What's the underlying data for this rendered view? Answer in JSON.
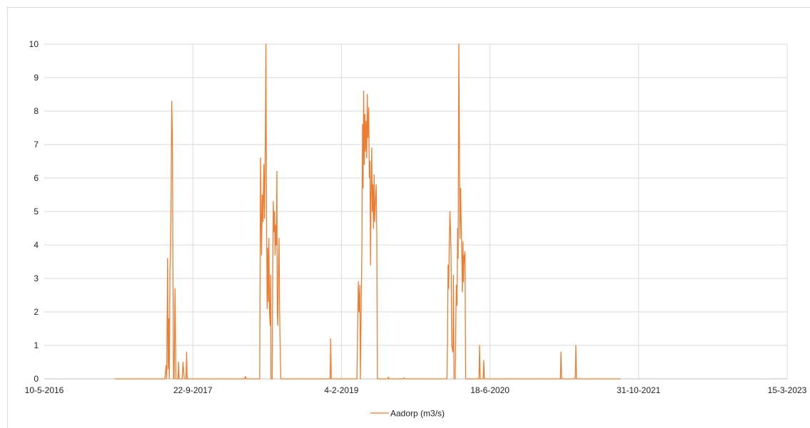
{
  "chart_data": {
    "type": "line",
    "title": "",
    "xlabel": "",
    "ylabel": "",
    "ylim": [
      0,
      10
    ],
    "xlim": [
      "2016-05-10",
      "2023-03-15"
    ],
    "y_ticks": [
      0,
      1,
      2,
      3,
      4,
      5,
      6,
      7,
      8,
      9,
      10
    ],
    "x_ticks": [
      {
        "date": "2016-05-10",
        "label": "10-5-2016"
      },
      {
        "date": "2017-09-22",
        "label": "22-9-2017"
      },
      {
        "date": "2019-02-04",
        "label": "4-2-2019"
      },
      {
        "date": "2020-06-18",
        "label": "18-6-2020"
      },
      {
        "date": "2021-10-31",
        "label": "31-10-2021"
      },
      {
        "date": "2023-03-15",
        "label": "15-3-2023"
      }
    ],
    "grid": true,
    "legend_position": "bottom",
    "series": [
      {
        "name": "Aadorp (m3/s)",
        "color": "#ED7D31",
        "points": [
          [
            "2017-01-01",
            0
          ],
          [
            "2017-06-20",
            0
          ],
          [
            "2017-06-24",
            0.4
          ],
          [
            "2017-06-26",
            0
          ],
          [
            "2017-06-29",
            3.6
          ],
          [
            "2017-07-01",
            0.3
          ],
          [
            "2017-07-03",
            1.8
          ],
          [
            "2017-07-05",
            0
          ],
          [
            "2017-07-07",
            3.2
          ],
          [
            "2017-07-09",
            3.9
          ],
          [
            "2017-07-11",
            5.5
          ],
          [
            "2017-07-13",
            8.3
          ],
          [
            "2017-07-15",
            7.3
          ],
          [
            "2017-07-17",
            3.4
          ],
          [
            "2017-07-19",
            0
          ],
          [
            "2017-07-21",
            0
          ],
          [
            "2017-07-24",
            2.7
          ],
          [
            "2017-07-27",
            0
          ],
          [
            "2017-08-03",
            0
          ],
          [
            "2017-08-05",
            0.5
          ],
          [
            "2017-08-07",
            0
          ],
          [
            "2017-08-17",
            0
          ],
          [
            "2017-08-20",
            0.5
          ],
          [
            "2017-08-24",
            0
          ],
          [
            "2017-08-30",
            0
          ],
          [
            "2017-09-01",
            0.8
          ],
          [
            "2017-09-03",
            0
          ],
          [
            "2018-03-15",
            0
          ],
          [
            "2018-03-18",
            0.07
          ],
          [
            "2018-03-21",
            0
          ],
          [
            "2018-05-05",
            0
          ],
          [
            "2018-05-08",
            6.6
          ],
          [
            "2018-05-11",
            3.7
          ],
          [
            "2018-05-14",
            5.5
          ],
          [
            "2018-05-16",
            4.7
          ],
          [
            "2018-05-19",
            6.4
          ],
          [
            "2018-05-21",
            4.8
          ],
          [
            "2018-05-24",
            7.0
          ],
          [
            "2018-05-26",
            10.0
          ],
          [
            "2018-05-28",
            4.9
          ],
          [
            "2018-05-30",
            2.1
          ],
          [
            "2018-06-01",
            3.9
          ],
          [
            "2018-06-03",
            2.3
          ],
          [
            "2018-06-05",
            4.2
          ],
          [
            "2018-06-07",
            2.0
          ],
          [
            "2018-06-09",
            1.6
          ],
          [
            "2018-06-11",
            3.1
          ],
          [
            "2018-06-12",
            0
          ],
          [
            "2018-06-16",
            0
          ],
          [
            "2018-06-18",
            3.4
          ],
          [
            "2018-06-20",
            5.3
          ],
          [
            "2018-06-22",
            4.4
          ],
          [
            "2018-06-24",
            5.0
          ],
          [
            "2018-06-26",
            3.7
          ],
          [
            "2018-06-28",
            4.6
          ],
          [
            "2018-06-30",
            4.0
          ],
          [
            "2018-07-02",
            6.2
          ],
          [
            "2018-07-03",
            2.0
          ],
          [
            "2018-07-05",
            1.6
          ],
          [
            "2018-07-07",
            3.1
          ],
          [
            "2018-07-09",
            4.2
          ],
          [
            "2018-07-11",
            2.0
          ],
          [
            "2018-07-13",
            0.9
          ],
          [
            "2018-07-15",
            0
          ],
          [
            "2018-12-28",
            0
          ],
          [
            "2018-12-30",
            1.2
          ],
          [
            "2019-01-01",
            0
          ],
          [
            "2019-03-28",
            0
          ],
          [
            "2019-03-30",
            1.0
          ],
          [
            "2019-04-02",
            2.9
          ],
          [
            "2019-04-04",
            2.0
          ],
          [
            "2019-04-07",
            2.8
          ],
          [
            "2019-04-09",
            0
          ],
          [
            "2019-04-12",
            2.5
          ],
          [
            "2019-04-14",
            3.9
          ],
          [
            "2019-04-16",
            7.6
          ],
          [
            "2019-04-18",
            5.7
          ],
          [
            "2019-04-20",
            8.6
          ],
          [
            "2019-04-22",
            6.4
          ],
          [
            "2019-04-24",
            7.9
          ],
          [
            "2019-04-26",
            6.8
          ],
          [
            "2019-04-28",
            7.7
          ],
          [
            "2019-04-30",
            6.6
          ],
          [
            "2019-05-02",
            8.5
          ],
          [
            "2019-05-04",
            7.2
          ],
          [
            "2019-05-07",
            8.1
          ],
          [
            "2019-05-09",
            6.0
          ],
          [
            "2019-05-11",
            6.5
          ],
          [
            "2019-05-13",
            3.4
          ],
          [
            "2019-05-15",
            5.6
          ],
          [
            "2019-05-17",
            6.9
          ],
          [
            "2019-05-19",
            5.0
          ],
          [
            "2019-05-21",
            5.8
          ],
          [
            "2019-05-23",
            4.5
          ],
          [
            "2019-05-25",
            6.1
          ],
          [
            "2019-05-27",
            4.7
          ],
          [
            "2019-05-29",
            5.2
          ],
          [
            "2019-06-01",
            5.8
          ],
          [
            "2019-06-03",
            4.3
          ],
          [
            "2019-06-05",
            0
          ],
          [
            "2019-07-10",
            0
          ],
          [
            "2019-07-12",
            0.05
          ],
          [
            "2019-07-14",
            0
          ],
          [
            "2019-09-01",
            0
          ],
          [
            "2019-09-03",
            0.03
          ],
          [
            "2019-09-06",
            0
          ],
          [
            "2020-01-25",
            0
          ],
          [
            "2020-01-27",
            1.1
          ],
          [
            "2020-01-29",
            3.4
          ],
          [
            "2020-01-31",
            2.7
          ],
          [
            "2020-02-02",
            4.0
          ],
          [
            "2020-02-04",
            5.0
          ],
          [
            "2020-02-06",
            4.5
          ],
          [
            "2020-02-08",
            3.7
          ],
          [
            "2020-02-10",
            1.0
          ],
          [
            "2020-02-12",
            0.9
          ],
          [
            "2020-02-14",
            0.8
          ],
          [
            "2020-02-16",
            3.1
          ],
          [
            "2020-02-18",
            0
          ],
          [
            "2020-02-22",
            0
          ],
          [
            "2020-02-24",
            1.7
          ],
          [
            "2020-02-26",
            2.8
          ],
          [
            "2020-02-28",
            2.2
          ],
          [
            "2020-03-01",
            4.5
          ],
          [
            "2020-03-03",
            3.6
          ],
          [
            "2020-03-05",
            10.0
          ],
          [
            "2020-03-07",
            7.2
          ],
          [
            "2020-03-09",
            4.2
          ],
          [
            "2020-03-11",
            5.7
          ],
          [
            "2020-03-13",
            4.7
          ],
          [
            "2020-03-15",
            3.8
          ],
          [
            "2020-03-17",
            2.6
          ],
          [
            "2020-03-19",
            4.1
          ],
          [
            "2020-03-21",
            2.9
          ],
          [
            "2020-03-23",
            3.7
          ],
          [
            "2020-03-25",
            3.5
          ],
          [
            "2020-03-26",
            3.8
          ],
          [
            "2020-03-28",
            0
          ],
          [
            "2020-05-12",
            0
          ],
          [
            "2020-05-14",
            1.0
          ],
          [
            "2020-05-16",
            0
          ],
          [
            "2020-05-26",
            0
          ],
          [
            "2020-05-28",
            0.55
          ],
          [
            "2020-05-30",
            0
          ],
          [
            "2021-02-10",
            0
          ],
          [
            "2021-02-12",
            0.8
          ],
          [
            "2021-02-14",
            0
          ],
          [
            "2021-04-01",
            0
          ],
          [
            "2021-04-03",
            1.0
          ],
          [
            "2021-04-05",
            0
          ],
          [
            "2021-08-31",
            0
          ]
        ]
      }
    ]
  }
}
